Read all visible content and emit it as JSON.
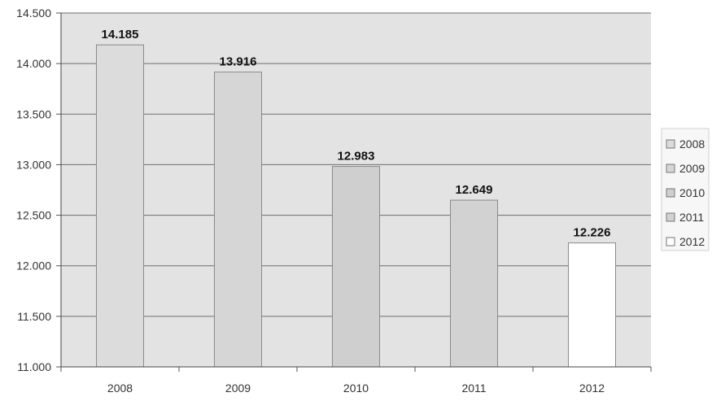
{
  "chart_data": {
    "type": "bar",
    "categories": [
      "2008",
      "2009",
      "2010",
      "2011",
      "2012"
    ],
    "values": [
      14185,
      13916,
      12983,
      12649,
      12226
    ],
    "value_labels": [
      "14.185",
      "13.916",
      "12.983",
      "12.649",
      "12.226"
    ],
    "ylim": [
      11000,
      14500
    ],
    "yticks": [
      11000,
      11500,
      12000,
      12500,
      13000,
      13500,
      14000,
      14500
    ],
    "ytick_labels": [
      "11.000",
      "11.500",
      "12.000",
      "12.500",
      "13.000",
      "13.500",
      "14.000",
      "14.500"
    ],
    "title": "",
    "xlabel": "",
    "ylabel": "",
    "grid": true,
    "legend": {
      "placement": "right",
      "entries": [
        "2008",
        "2009",
        "2010",
        "2011",
        "2012"
      ]
    },
    "colors": [
      "#dcdcdc",
      "#d6d6d6",
      "#cfcfcf",
      "#d2d2d2",
      "#ffffff"
    ],
    "plot_background": "#e3e3e3"
  }
}
